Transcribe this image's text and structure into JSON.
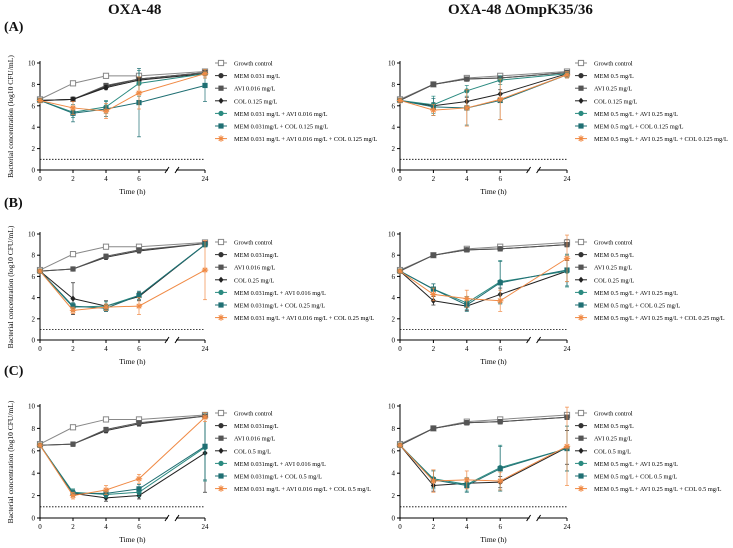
{
  "titles": {
    "left": "OXA-48",
    "right": "OXA-48 ΔOmpK35/36"
  },
  "panel_labels": [
    "(A)",
    "(B)",
    "(C)"
  ],
  "colors": {
    "growth": "#888888",
    "mem": "#333333",
    "avi": "#555555",
    "col": "#222222",
    "mem_avi": "#2a8a80",
    "mem_col": "#1f6f73",
    "triple": "#f08a45"
  },
  "chart_data": [
    {
      "id": "A-left",
      "type": "line",
      "xlabel": "Time (h)",
      "ylabel": "Bacterial concentration (log10 CFU/mL)",
      "x_categories": [
        "0",
        "2",
        "4",
        "6",
        "24"
      ],
      "yticks": [
        "0",
        "2",
        "4",
        "6",
        "8",
        "10"
      ],
      "ylim": [
        0,
        10
      ],
      "detection_limit": 1,
      "series": [
        {
          "name": "Growth control",
          "marker": "square-open",
          "color": "#888888",
          "values": [
            6.6,
            8.1,
            8.8,
            8.8,
            9.2
          ],
          "err": [
            0.1,
            0.2,
            0.1,
            0.2,
            0.2
          ]
        },
        {
          "name": "MEM 0.031 mg/L",
          "marker": "circle",
          "color": "#333333",
          "values": [
            6.5,
            6.6,
            7.8,
            8.5,
            9.1
          ],
          "err": [
            0.1,
            0.2,
            0.2,
            0.2,
            0.2
          ]
        },
        {
          "name": "AVI 0.016 mg/L",
          "marker": "square",
          "color": "#555555",
          "values": [
            6.5,
            6.6,
            7.9,
            8.5,
            9.1
          ],
          "err": [
            0.1,
            0.2,
            0.2,
            0.2,
            0.2
          ]
        },
        {
          "name": "COL 0.125 mg/L",
          "marker": "diamond",
          "color": "#222222",
          "values": [
            6.5,
            6.6,
            7.7,
            8.4,
            9.0
          ],
          "err": [
            0.1,
            0.2,
            0.2,
            0.2,
            0.2
          ]
        },
        {
          "name": "MEM 0.031 mg/L + AVI 0.016 mg/L",
          "marker": "circle",
          "color": "#2a8a80",
          "values": [
            6.5,
            5.4,
            5.9,
            8.1,
            9.0
          ],
          "err": [
            0.1,
            0.5,
            0.6,
            1.2,
            0.4
          ]
        },
        {
          "name": "MEM 0.031mg/L + COL 0.125 mg/L",
          "marker": "square",
          "color": "#1f6f73",
          "values": [
            6.5,
            5.3,
            5.7,
            6.3,
            7.9
          ],
          "err": [
            0.1,
            0.8,
            0.7,
            3.2,
            1.5
          ]
        },
        {
          "name": "MEM 0.031 mg/L + AVI 0.016 mg/L + COL 0.125 mg/L",
          "marker": "star",
          "color": "#f08a45",
          "values": [
            6.5,
            5.8,
            5.5,
            7.2,
            9.0
          ],
          "err": [
            0.1,
            0.6,
            0.7,
            1.5,
            0.4
          ]
        }
      ]
    },
    {
      "id": "A-right",
      "type": "line",
      "xlabel": "Time (h)",
      "ylabel": "",
      "x_categories": [
        "0",
        "2",
        "4",
        "6",
        "24"
      ],
      "yticks": [
        "0",
        "2",
        "4",
        "6",
        "8",
        "10"
      ],
      "ylim": [
        0,
        10
      ],
      "detection_limit": 1,
      "series": [
        {
          "name": "Growth control",
          "marker": "square-open",
          "color": "#888888",
          "values": [
            6.6,
            8.0,
            8.6,
            8.8,
            9.2
          ],
          "err": [
            0.1,
            0.2,
            0.2,
            0.2,
            0.2
          ]
        },
        {
          "name": "MEM 0.5 mg/L",
          "marker": "circle",
          "color": "#333333",
          "values": [
            6.5,
            8.0,
            8.5,
            8.6,
            9.1
          ],
          "err": [
            0.1,
            0.2,
            0.2,
            0.2,
            0.2
          ]
        },
        {
          "name": "AVI 0.25 mg/L",
          "marker": "square",
          "color": "#555555",
          "values": [
            6.5,
            8.0,
            8.5,
            8.6,
            9.1
          ],
          "err": [
            0.1,
            0.2,
            0.2,
            0.2,
            0.2
          ]
        },
        {
          "name": "COL 0.125 mg/L",
          "marker": "diamond",
          "color": "#222222",
          "values": [
            6.5,
            6.0,
            6.4,
            7.1,
            9.0
          ],
          "err": [
            0.1,
            0.3,
            0.4,
            0.4,
            0.2
          ]
        },
        {
          "name": "MEM 0.5 mg/L + AVI 0.25 mg/L",
          "marker": "circle",
          "color": "#2a8a80",
          "values": [
            6.5,
            6.1,
            7.4,
            8.4,
            9.0
          ],
          "err": [
            0.1,
            0.8,
            0.5,
            0.4,
            0.2
          ]
        },
        {
          "name": "MEM 0.5 mg/L + COL 0.125 mg/L",
          "marker": "square",
          "color": "#1f6f73",
          "values": [
            6.5,
            5.9,
            5.8,
            6.5,
            8.9
          ],
          "err": [
            0.1,
            0.8,
            1.6,
            1.8,
            0.3
          ]
        },
        {
          "name": "MEM 0.5 mg/L + AVI 0.25 mg/L + COL 0.125 mg/L",
          "marker": "star",
          "color": "#f08a45",
          "values": [
            6.5,
            5.6,
            5.8,
            6.6,
            8.9
          ],
          "err": [
            0.1,
            0.5,
            1.7,
            1.9,
            0.3
          ]
        }
      ]
    },
    {
      "id": "B-left",
      "type": "line",
      "xlabel": "Time (h)",
      "ylabel": "Bacterial concentration (log10 CFU/mL)",
      "x_categories": [
        "0",
        "2",
        "4",
        "6",
        "24"
      ],
      "yticks": [
        "0",
        "2",
        "4",
        "6",
        "8",
        "10"
      ],
      "ylim": [
        0,
        10
      ],
      "detection_limit": 1,
      "series": [
        {
          "name": "Growth control",
          "marker": "square-open",
          "color": "#888888",
          "values": [
            6.6,
            8.1,
            8.8,
            8.8,
            9.2
          ],
          "err": [
            0.1,
            0.2,
            0.1,
            0.2,
            0.2
          ]
        },
        {
          "name": "MEM 0.031mg/L",
          "marker": "circle",
          "color": "#333333",
          "values": [
            6.5,
            6.7,
            7.8,
            8.4,
            9.1
          ],
          "err": [
            0.1,
            0.2,
            0.2,
            0.2,
            0.2
          ]
        },
        {
          "name": "AVI 0.016 mg/L",
          "marker": "square",
          "color": "#555555",
          "values": [
            6.5,
            6.7,
            7.9,
            8.5,
            9.1
          ],
          "err": [
            0.1,
            0.2,
            0.2,
            0.2,
            0.2
          ]
        },
        {
          "name": "COL 0.25 mg/L",
          "marker": "diamond",
          "color": "#222222",
          "values": [
            6.5,
            3.9,
            3.2,
            4.1,
            9.0
          ],
          "err": [
            0.1,
            1.5,
            0.5,
            0.4,
            0.2
          ]
        },
        {
          "name": "MEM 0.031mg/L + AVI 0.016 mg/L",
          "marker": "circle",
          "color": "#2a8a80",
          "values": [
            6.5,
            3.1,
            3.2,
            4.2,
            9.0
          ],
          "err": [
            0.1,
            0.4,
            0.4,
            0.4,
            0.2
          ]
        },
        {
          "name": "MEM 0.031mg/L + COL 0.25 mg/L",
          "marker": "square",
          "color": "#1f6f73",
          "values": [
            6.5,
            3.2,
            3.0,
            4.2,
            9.0
          ],
          "err": [
            0.1,
            0.3,
            0.3,
            0.4,
            0.2
          ]
        },
        {
          "name": "MEM 0.031 mg/L + AVI 0.016 mg/L + COL 0.25 mg/L",
          "marker": "star",
          "color": "#f08a45",
          "values": [
            6.5,
            2.8,
            3.1,
            3.2,
            6.6
          ],
          "err": [
            0.1,
            0.3,
            0.3,
            0.8,
            2.8
          ]
        }
      ]
    },
    {
      "id": "B-right",
      "type": "line",
      "xlabel": "Time (h)",
      "ylabel": "",
      "x_categories": [
        "0",
        "2",
        "4",
        "6",
        "24"
      ],
      "yticks": [
        "0",
        "2",
        "4",
        "6",
        "8",
        "10"
      ],
      "ylim": [
        0,
        10
      ],
      "detection_limit": 1,
      "series": [
        {
          "name": "Growth control",
          "marker": "square-open",
          "color": "#888888",
          "values": [
            6.6,
            8.0,
            8.6,
            8.8,
            9.2
          ],
          "err": [
            0.1,
            0.2,
            0.2,
            0.2,
            0.3
          ]
        },
        {
          "name": "MEM 0.5 mg/L",
          "marker": "circle",
          "color": "#333333",
          "values": [
            6.5,
            8.0,
            8.5,
            8.6,
            9.0
          ],
          "err": [
            0.1,
            0.2,
            0.2,
            0.2,
            0.2
          ]
        },
        {
          "name": "AVI 0.25 mg/L",
          "marker": "square",
          "color": "#555555",
          "values": [
            6.5,
            8.0,
            8.5,
            8.6,
            9.0
          ],
          "err": [
            0.1,
            0.2,
            0.2,
            0.2,
            0.2
          ]
        },
        {
          "name": "COL 0.25 mg/L",
          "marker": "diamond",
          "color": "#222222",
          "values": [
            6.5,
            3.7,
            3.2,
            4.3,
            6.5
          ],
          "err": [
            0.1,
            0.4,
            0.4,
            0.6,
            1.0
          ]
        },
        {
          "name": "MEM 0.5 mg/L + AVI 0.25 mg/L",
          "marker": "circle",
          "color": "#2a8a80",
          "values": [
            6.5,
            4.8,
            3.5,
            5.5,
            6.5
          ],
          "err": [
            0.1,
            0.5,
            0.6,
            2.0,
            1.5
          ]
        },
        {
          "name": "MEM 0.5 mg/L + COL 0.25 mg/L",
          "marker": "square",
          "color": "#1f6f73",
          "values": [
            6.5,
            4.8,
            3.3,
            5.4,
            6.6
          ],
          "err": [
            0.1,
            0.5,
            0.6,
            2.0,
            1.5
          ]
        },
        {
          "name": "MEM 0.5 mg/L + AVI 0.25 mg/L + COL 0.25 mg/L",
          "marker": "star",
          "color": "#f08a45",
          "values": [
            6.5,
            4.3,
            3.9,
            3.7,
            7.7
          ],
          "err": [
            0.1,
            0.6,
            0.8,
            1.0,
            2.2
          ]
        }
      ]
    },
    {
      "id": "C-left",
      "type": "line",
      "xlabel": "Time (h)",
      "ylabel": "Bacterial concentration (log10 CFU/mL)",
      "x_categories": [
        "0",
        "2",
        "4",
        "6",
        "24"
      ],
      "yticks": [
        "0",
        "2",
        "4",
        "6",
        "8",
        "10"
      ],
      "ylim": [
        0,
        10
      ],
      "detection_limit": 1,
      "series": [
        {
          "name": "Growth control",
          "marker": "square-open",
          "color": "#888888",
          "values": [
            6.6,
            8.1,
            8.8,
            8.8,
            9.2
          ],
          "err": [
            0.1,
            0.2,
            0.1,
            0.2,
            0.2
          ]
        },
        {
          "name": "MEM 0.031mg/L",
          "marker": "circle",
          "color": "#333333",
          "values": [
            6.5,
            6.6,
            7.8,
            8.4,
            9.1
          ],
          "err": [
            0.1,
            0.2,
            0.2,
            0.2,
            0.2
          ]
        },
        {
          "name": "AVI 0.016 mg/L",
          "marker": "square",
          "color": "#555555",
          "values": [
            6.5,
            6.6,
            7.9,
            8.5,
            9.1
          ],
          "err": [
            0.1,
            0.2,
            0.2,
            0.2,
            0.2
          ]
        },
        {
          "name": "COL 0.5 mg/L",
          "marker": "diamond",
          "color": "#222222",
          "values": [
            6.5,
            2.2,
            1.8,
            2.0,
            5.8
          ],
          "err": [
            0.1,
            0.3,
            0.3,
            0.3,
            3.5
          ]
        },
        {
          "name": "MEM 0.031mg/L + AVI 0.016 mg/L",
          "marker": "circle",
          "color": "#2a8a80",
          "values": [
            6.5,
            2.3,
            2.1,
            2.3,
            6.3
          ],
          "err": [
            0.1,
            0.3,
            0.3,
            0.4,
            3.0
          ]
        },
        {
          "name": "MEM 0.031mg/L + COL 0.5 mg/L",
          "marker": "square",
          "color": "#1f6f73",
          "values": [
            6.5,
            2.2,
            2.2,
            2.6,
            6.4
          ],
          "err": [
            0.1,
            0.3,
            0.3,
            0.4,
            3.0
          ]
        },
        {
          "name": "MEM 0.031 mg/L + AVI 0.016 mg/L + COL 0.5 mg/L",
          "marker": "star",
          "color": "#f08a45",
          "values": [
            6.5,
            2.0,
            2.5,
            3.5,
            9.0
          ],
          "err": [
            0.1,
            0.3,
            0.4,
            0.4,
            0.4
          ]
        }
      ]
    },
    {
      "id": "C-right",
      "type": "line",
      "xlabel": "Time (h)",
      "ylabel": "",
      "x_categories": [
        "0",
        "2",
        "4",
        "6",
        "24"
      ],
      "yticks": [
        "0",
        "2",
        "4",
        "6",
        "8",
        "10"
      ],
      "ylim": [
        0,
        10
      ],
      "detection_limit": 1,
      "series": [
        {
          "name": "Growth control",
          "marker": "square-open",
          "color": "#888888",
          "values": [
            6.6,
            8.0,
            8.6,
            8.8,
            9.2
          ],
          "err": [
            0.1,
            0.2,
            0.2,
            0.2,
            0.2
          ]
        },
        {
          "name": "MEM 0.5 mg/L",
          "marker": "circle",
          "color": "#333333",
          "values": [
            6.5,
            8.0,
            8.5,
            8.6,
            9.0
          ],
          "err": [
            0.1,
            0.2,
            0.2,
            0.2,
            0.2
          ]
        },
        {
          "name": "AVI 0.25 mg/L",
          "marker": "square",
          "color": "#555555",
          "values": [
            6.5,
            8.0,
            8.5,
            8.6,
            9.0
          ],
          "err": [
            0.1,
            0.2,
            0.2,
            0.2,
            0.2
          ]
        },
        {
          "name": "COL 0.5 mg/L",
          "marker": "diamond",
          "color": "#222222",
          "values": [
            6.5,
            2.9,
            3.1,
            3.2,
            6.3
          ],
          "err": [
            0.1,
            0.5,
            0.4,
            0.5,
            1.5
          ]
        },
        {
          "name": "MEM 0.5 mg/L + AVI 0.25 mg/L",
          "marker": "circle",
          "color": "#2a8a80",
          "values": [
            6.5,
            3.5,
            3.0,
            4.5,
            6.2
          ],
          "err": [
            0.1,
            0.8,
            0.6,
            2.0,
            2.0
          ]
        },
        {
          "name": "MEM 0.5 mg/L + COL 0.5 mg/L",
          "marker": "square",
          "color": "#1f6f73",
          "values": [
            6.5,
            3.4,
            2.9,
            4.4,
            6.2
          ],
          "err": [
            0.1,
            0.8,
            0.6,
            2.0,
            2.0
          ]
        },
        {
          "name": "MEM 0.5 mg/L + AVI 0.25 mg/L + COL 0.5 mg/L",
          "marker": "star",
          "color": "#f08a45",
          "values": [
            6.5,
            3.3,
            3.4,
            3.3,
            6.4
          ],
          "err": [
            0.1,
            1.0,
            0.8,
            0.8,
            3.5
          ]
        }
      ]
    }
  ]
}
